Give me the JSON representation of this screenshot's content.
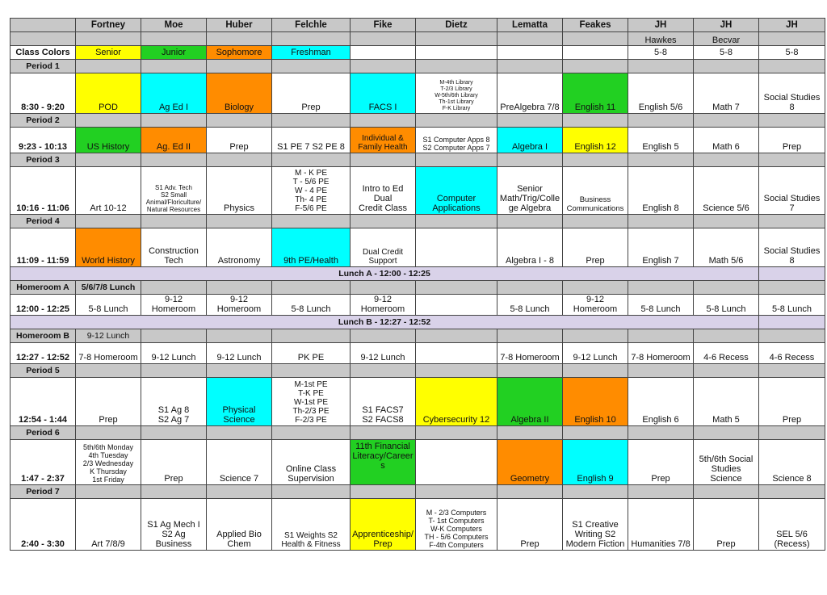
{
  "header": {
    "teachers": [
      "Fortney",
      "Moe",
      "Huber",
      "Felchle",
      "Fike",
      "Dietz",
      "Lematta",
      "Feakes",
      "JH",
      "JH",
      "JH"
    ],
    "sub": [
      "",
      "",
      "",
      "",
      "",
      "",
      "",
      "",
      "Hawkes",
      "Becvar",
      ""
    ]
  },
  "class_colors": {
    "label": "Class Colors",
    "senior": "Senior",
    "junior": "Junior",
    "sophomore": "Sophomore",
    "freshman": "Freshman",
    "jh": [
      "5-8",
      "5-8",
      "5-8"
    ],
    "palette": {
      "senior": "#ffff00",
      "junior": "#22d022",
      "sophomore": "#ff8c00",
      "freshman": "#00ffff"
    }
  },
  "periods": [
    {
      "label": "Period 1",
      "time": "8:30 - 9:20",
      "cells": [
        "POD",
        "Ag Ed I",
        "Biology",
        "Prep",
        "FACS I",
        "M-4th Library\nT-2/3 Library\nW-5th/6th Library\nTh-1st Library\nF-K Library",
        "PreAlgebra 7/8",
        "English 11",
        "English 5/6",
        "Math 7",
        "Social Studies 8"
      ]
    },
    {
      "label": "Period 2",
      "time": "9:23 - 10:13",
      "cells": [
        "US History",
        "Ag. Ed II",
        "Prep",
        "S1 PE 7 S2 PE 8",
        "Individual &\nFamily Health",
        "S1 Computer Apps 8\nS2 Computer Apps 7",
        "Algebra I",
        "English 12",
        "English 5",
        "Math 6",
        "Prep"
      ]
    },
    {
      "label": "Period 3",
      "time": "10:16 - 11:06",
      "cells": [
        "Art 10-12",
        "S1 Adv. Tech\nS2 Small\nAnimal/Floriculture/\nNatural Resources",
        "Physics",
        "M - K PE\nT - 5/6 PE\nW - 4 PE\nTh- 4 PE\nF-5/6 PE",
        "Intro to Ed Dual\nCredit Class",
        "Computer\nApplications",
        "Senior\nMath/Trig/Colle\nge Algebra",
        "Business\nCommunications",
        "English 8",
        "Science 5/6",
        "Social Studies 7"
      ]
    },
    {
      "label": "Period 4",
      "time": "11:09 - 11:59",
      "cells": [
        "World History",
        "Construction\nTech",
        "Astronomy",
        "9th PE/Health",
        "Dual Credit\nSupport",
        "",
        "Algebra I - 8",
        "Prep",
        "English 7",
        "Math 5/6",
        "Social Studies 8"
      ]
    }
  ],
  "lunch_a": "Lunch A - 12:00 - 12:25",
  "homeroom_a": {
    "label": "Homeroom A",
    "note": "5/6/7/8 Lunch",
    "time": "12:00 - 12:25",
    "cells": [
      "5-8 Lunch",
      "9-12 Homeroom",
      "9-12 Homeroom",
      "5-8 Lunch",
      "9-12 Homeroom",
      "",
      "5-8 Lunch",
      "9-12 Homeroom",
      "5-8 Lunch",
      "5-8 Lunch",
      "5-8 Lunch"
    ]
  },
  "lunch_b": "Lunch B - 12:27 - 12:52",
  "homeroom_b": {
    "label": "Homeroom B",
    "note": "9-12 Lunch",
    "time": "12:27 - 12:52",
    "cells": [
      "7-8 Homeroom",
      "9-12 Lunch",
      "9-12 Lunch",
      "PK PE",
      "9-12 Lunch",
      "",
      "7-8 Homeroom",
      "9-12 Lunch",
      "7-8 Homeroom",
      "4-6 Recess",
      "4-6 Recess"
    ]
  },
  "periods_late": [
    {
      "label": "Period 5",
      "time": "12:54 - 1:44",
      "cells": [
        "Prep",
        "S1 Ag 8\nS2 Ag 7",
        "Physical\nScience",
        "M-1st PE\nT-K PE\nW-1st PE\nTh-2/3 PE\nF-2/3 PE",
        "S1 FACS7\nS2 FACS8",
        "Cybersecurity 12",
        "Algebra II",
        "English 10",
        "English 6",
        "Math 5",
        "Prep"
      ]
    },
    {
      "label": "Period 6",
      "time": "1:47 - 2:37",
      "cells": [
        "5th/6th Monday\n4th Tuesday\n2/3 Wednesday\nK Thursday\n1st Friday",
        "Prep",
        "Science 7",
        "Online Class\nSupervision",
        "11th Financial\nLiteracy/Career\ns",
        "",
        "Geometry",
        "English 9",
        "Prep",
        "5th/6th Social\nStudies\nScience",
        "Science 8"
      ]
    },
    {
      "label": "Period 7",
      "time": "2:40 - 3:30",
      "cells": [
        "Art 7/8/9",
        "S1 Ag Mech I\nS2 Ag\nBusiness",
        "Applied Bio\nChem",
        "S1 Weights S2\nHealth & Fitness",
        "Apprenticeship/\nPrep",
        "M - 2/3 Computers\nT- 1st Computers\nW-K Computers\nTH - 5/6 Computers\nF-4th Computers",
        "Prep",
        "S1 Creative\nWriting S2\nModern Fiction",
        "Humanities 7/8",
        "Prep",
        "SEL 5/6\n(Recess)"
      ]
    }
  ]
}
